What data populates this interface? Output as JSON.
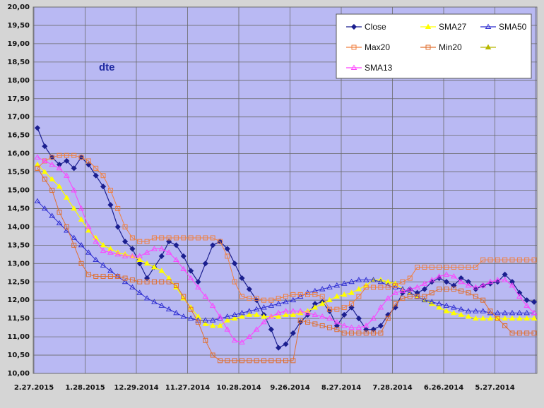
{
  "chart_data": {
    "type": "line",
    "label": "dte",
    "ylim": [
      10,
      20
    ],
    "y_ticks": [
      "20,00",
      "19,50",
      "19,00",
      "18,50",
      "18,00",
      "17,50",
      "17,00",
      "16,50",
      "16,00",
      "15,50",
      "15,00",
      "14,50",
      "14,00",
      "13,50",
      "13,00",
      "12,50",
      "12,00",
      "11,50",
      "11,00",
      "10,50",
      "10,00"
    ],
    "x_ticks": [
      "2.27.2015",
      "1.28.2015",
      "12.29.2014",
      "11.27.2014",
      "10.28.2014",
      "9.26.2014",
      "8.27.2014",
      "7.28.2014",
      "6.26.2014",
      "5.27.2014"
    ],
    "grid": true,
    "legend_position": "top-right",
    "colors": {
      "plot_bg": "#b9b9f3",
      "page_bg": "#d5d5d5",
      "grid": "#6a6a6a",
      "Close": "#1b1f8f",
      "SMA27": "#ffff00",
      "SMA50": "#2a2ad0",
      "Max20": "#f08040",
      "Min20": "#e07030",
      "blank": "#b8b800",
      "SMA13": "#ff40ff",
      "fill_marker": "#b02020"
    },
    "legend": [
      {
        "name": "Close",
        "marker": "diamond"
      },
      {
        "name": "SMA27",
        "marker": "triangle"
      },
      {
        "name": "SMA50",
        "marker": "triangle"
      },
      {
        "name": "Max20",
        "marker": "square"
      },
      {
        "name": "Min20",
        "marker": "square"
      },
      {
        "name": "",
        "marker": "triangle"
      },
      {
        "name": "SMA13",
        "marker": "triangle"
      }
    ],
    "series": [
      {
        "name": "Close",
        "values": [
          16.7,
          16.2,
          15.9,
          15.7,
          15.8,
          15.6,
          15.9,
          15.7,
          15.4,
          15.1,
          14.6,
          14.0,
          13.6,
          13.4,
          13.0,
          12.6,
          12.9,
          13.2,
          13.6,
          13.5,
          13.2,
          12.8,
          12.5,
          13.0,
          13.5,
          13.6,
          13.4,
          13.0,
          12.6,
          12.3,
          12.0,
          11.6,
          11.2,
          10.7,
          10.8,
          11.1,
          11.4,
          11.6,
          11.9,
          11.95,
          11.7,
          11.3,
          11.6,
          11.8,
          11.5,
          11.2,
          11.2,
          11.3,
          11.6,
          11.8,
          12.2,
          12.3,
          12.2,
          12.3,
          12.5,
          12.6,
          12.5,
          12.4,
          12.6,
          12.5,
          12.3,
          12.4,
          12.45,
          12.5,
          12.7,
          12.5,
          12.2,
          12.0,
          11.95
        ]
      },
      {
        "name": "SMA27",
        "values": [
          15.7,
          15.5,
          15.3,
          15.1,
          14.8,
          14.5,
          14.2,
          13.9,
          13.7,
          13.5,
          13.4,
          13.3,
          13.25,
          13.2,
          13.1,
          13.0,
          12.9,
          12.8,
          12.6,
          12.35,
          12.05,
          11.8,
          11.55,
          11.35,
          11.3,
          11.3,
          11.45,
          11.5,
          11.55,
          11.6,
          11.6,
          11.55,
          11.55,
          11.55,
          11.6,
          11.6,
          11.65,
          11.7,
          11.8,
          11.9,
          12.0,
          12.1,
          12.15,
          12.2,
          12.3,
          12.4,
          12.55,
          12.55,
          12.5,
          12.45,
          12.3,
          12.2,
          12.1,
          12.0,
          11.9,
          11.8,
          11.7,
          11.65,
          11.6,
          11.55,
          11.5,
          11.5,
          11.5,
          11.5,
          11.5,
          11.5,
          11.5,
          11.5,
          11.5
        ]
      },
      {
        "name": "SMA50",
        "values": [
          14.7,
          14.5,
          14.3,
          14.1,
          13.9,
          13.7,
          13.5,
          13.3,
          13.1,
          12.95,
          12.8,
          12.65,
          12.5,
          12.35,
          12.2,
          12.05,
          11.95,
          11.85,
          11.75,
          11.65,
          11.55,
          11.5,
          11.45,
          11.45,
          11.45,
          11.5,
          11.55,
          11.6,
          11.65,
          11.7,
          11.75,
          11.8,
          11.85,
          11.9,
          11.95,
          12.0,
          12.1,
          12.2,
          12.25,
          12.3,
          12.35,
          12.4,
          12.45,
          12.5,
          12.55,
          12.55,
          12.55,
          12.5,
          12.4,
          12.35,
          12.3,
          12.2,
          12.1,
          12.0,
          11.95,
          11.9,
          11.85,
          11.8,
          11.75,
          11.7,
          11.7,
          11.7,
          11.65,
          11.65,
          11.65,
          11.65,
          11.65,
          11.65,
          11.65
        ]
      },
      {
        "name": "Max20",
        "values": [
          15.6,
          15.8,
          15.9,
          15.95,
          15.95,
          15.95,
          15.9,
          15.8,
          15.6,
          15.4,
          15.0,
          14.5,
          14.0,
          13.7,
          13.6,
          13.6,
          13.7,
          13.7,
          13.7,
          13.7,
          13.7,
          13.7,
          13.7,
          13.7,
          13.7,
          13.6,
          13.2,
          12.5,
          12.1,
          12.05,
          12.05,
          12.0,
          12.0,
          12.05,
          12.1,
          12.15,
          12.15,
          12.15,
          12.15,
          12.1,
          11.75,
          11.75,
          11.8,
          11.9,
          12.1,
          12.35,
          12.35,
          12.35,
          12.35,
          12.4,
          12.5,
          12.6,
          12.9,
          12.9,
          12.9,
          12.9,
          12.9,
          12.9,
          12.9,
          12.9,
          12.9,
          13.1,
          13.1,
          13.1,
          13.1,
          13.1,
          13.1,
          13.1,
          13.1
        ]
      },
      {
        "name": "Min20",
        "values": [
          15.6,
          15.3,
          15.0,
          14.4,
          14.0,
          13.5,
          13.0,
          12.7,
          12.65,
          12.65,
          12.65,
          12.65,
          12.6,
          12.55,
          12.5,
          12.5,
          12.5,
          12.5,
          12.5,
          12.4,
          12.1,
          11.75,
          11.4,
          10.9,
          10.5,
          10.35,
          10.35,
          10.35,
          10.35,
          10.35,
          10.35,
          10.35,
          10.35,
          10.35,
          10.35,
          10.35,
          11.45,
          11.4,
          11.35,
          11.3,
          11.25,
          11.2,
          11.1,
          11.1,
          11.1,
          11.1,
          11.1,
          11.1,
          11.5,
          11.9,
          12.05,
          12.1,
          12.1,
          12.1,
          12.2,
          12.3,
          12.3,
          12.3,
          12.25,
          12.2,
          12.1,
          12.0,
          11.7,
          11.5,
          11.3,
          11.1,
          11.1,
          11.1,
          11.1
        ]
      },
      {
        "name": "SMA13",
        "values": [
          15.9,
          15.8,
          15.7,
          15.6,
          15.4,
          15.0,
          14.5,
          14.0,
          13.6,
          13.35,
          13.3,
          13.25,
          13.2,
          13.2,
          13.2,
          13.3,
          13.4,
          13.4,
          13.3,
          13.1,
          12.85,
          12.6,
          12.35,
          12.1,
          11.85,
          11.55,
          11.2,
          10.9,
          10.85,
          11.0,
          11.2,
          11.4,
          11.55,
          11.65,
          11.7,
          11.7,
          11.7,
          11.65,
          11.6,
          11.55,
          11.5,
          11.4,
          11.3,
          11.25,
          11.25,
          11.3,
          11.5,
          11.8,
          12.05,
          12.2,
          12.25,
          12.3,
          12.35,
          12.45,
          12.55,
          12.65,
          12.7,
          12.65,
          12.5,
          12.4,
          12.35,
          12.4,
          12.5,
          12.55,
          12.55,
          12.4,
          12.1,
          11.85,
          11.65
        ]
      },
      {
        "name": "",
        "values": []
      }
    ]
  }
}
